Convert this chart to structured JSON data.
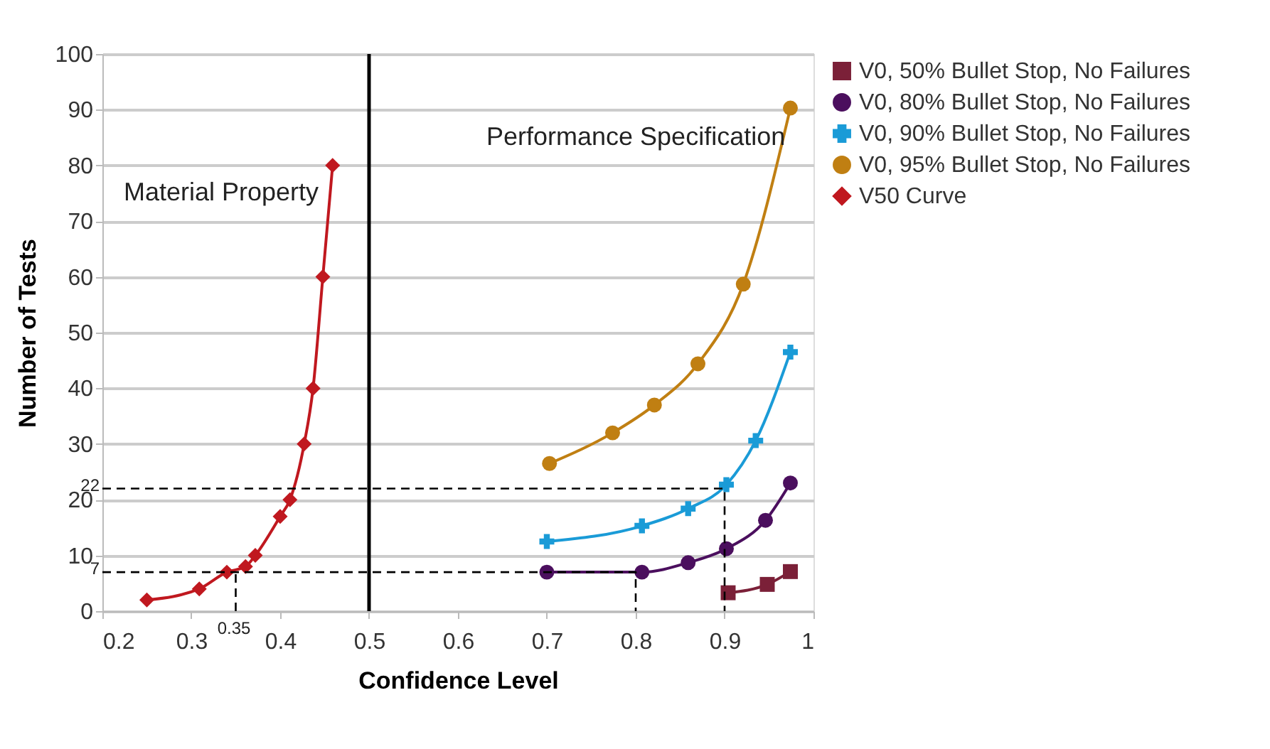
{
  "chart_data": {
    "type": "line",
    "xlabel": "Confidence Level",
    "ylabel": "Number of Tests",
    "xlim": [
      0.2,
      1
    ],
    "xticks": [
      0.2,
      0.3,
      0.4,
      0.5,
      0.6,
      0.7,
      0.8,
      0.9,
      1
    ],
    "ylim": [
      0,
      100
    ],
    "yticks": [
      0,
      10,
      20,
      30,
      40,
      50,
      60,
      70,
      80,
      90,
      100
    ],
    "grid": "y",
    "legend": "top right",
    "series": [
      {
        "name": "V0, 50% Bullet Stop, No Failures",
        "color": "#7b2038",
        "marker": "square",
        "x": [
          0.904,
          0.948,
          0.974
        ],
        "values": [
          3.3,
          4.8,
          7.1
        ]
      },
      {
        "name": "V0, 80% Bullet Stop, No Failures",
        "color": "#4b0f5e",
        "marker": "circle",
        "x": [
          0.7,
          0.807,
          0.859,
          0.902,
          0.946,
          0.974
        ],
        "values": [
          7,
          7,
          8.7,
          11.2,
          16.3,
          23
        ]
      },
      {
        "name": "V0, 90% Bullet Stop, No Failures",
        "color": "#1a9bd7",
        "marker": "cross",
        "x": [
          0.7,
          0.807,
          0.859,
          0.902,
          0.935,
          0.974
        ],
        "values": [
          12.5,
          15.3,
          18.4,
          22.7,
          30.6,
          46.5
        ]
      },
      {
        "name": "V0, 95% Bullet Stop, No Failures",
        "color": "#c07f12",
        "marker": "circle",
        "x": [
          0.703,
          0.774,
          0.821,
          0.87,
          0.921,
          0.974
        ],
        "values": [
          26.5,
          32,
          37,
          44.4,
          58.7,
          90.3
        ]
      },
      {
        "name": "V50 Curve",
        "color": "#c0181f",
        "marker": "diamond",
        "x": [
          0.25,
          0.309,
          0.34,
          0.361,
          0.372,
          0.4,
          0.411,
          0.427,
          0.437,
          0.448,
          0.459
        ],
        "values": [
          2,
          4,
          7,
          8,
          10,
          17,
          20,
          30,
          40,
          60,
          80
        ]
      },
      {
        "color": "#000000",
        "marker": "none",
        "line_style": "dashed",
        "x": [
          0.2,
          0.8,
          0.8
        ],
        "values": [
          7,
          7,
          0
        ]
      },
      {
        "color": "#000000",
        "marker": "none",
        "line_style": "dashed",
        "x": [
          0.35,
          0.35
        ],
        "values": [
          0,
          7
        ]
      },
      {
        "color": "#000000",
        "marker": "none",
        "line_style": "dashed",
        "x": [
          0.2,
          0.9,
          0.9
        ],
        "values": [
          22,
          22,
          0
        ]
      }
    ],
    "ref_lines": [
      {
        "axis": "x",
        "value": 0.5,
        "color": "#000000"
      }
    ],
    "annotations": [
      "Material Property",
      "Performance Specification",
      "22",
      "7",
      "0.35"
    ]
  }
}
